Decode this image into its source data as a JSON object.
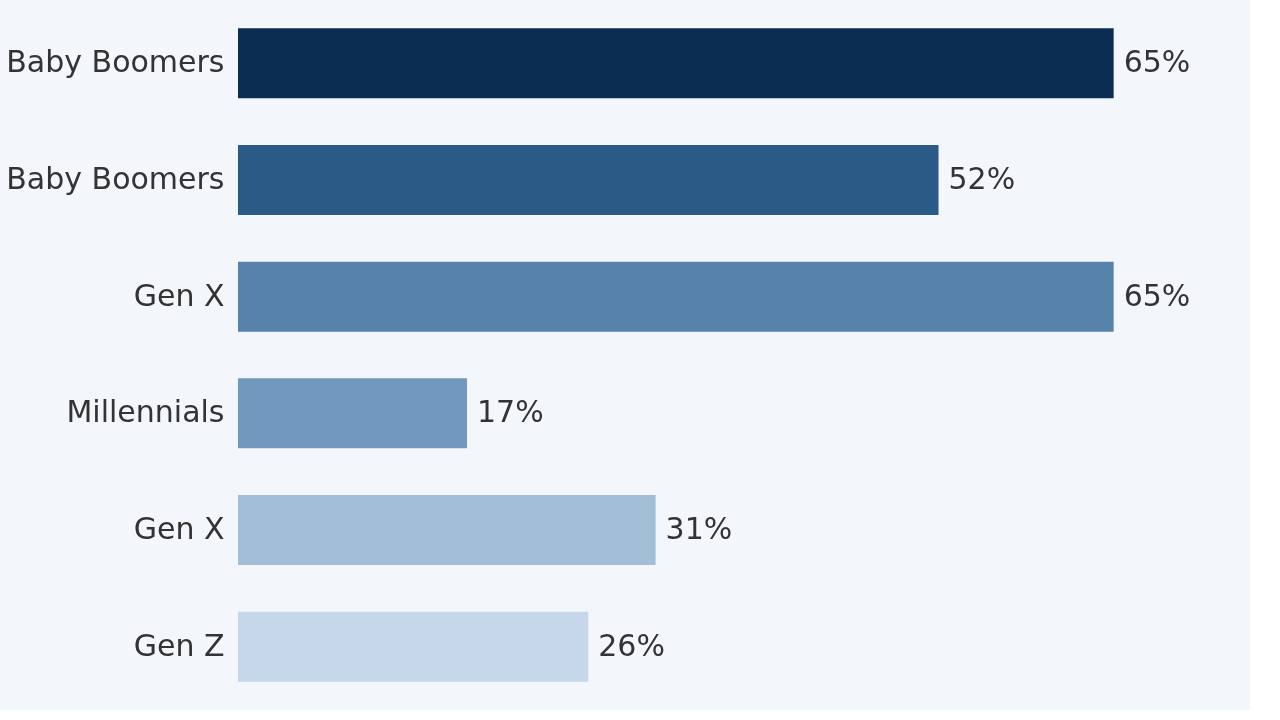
{
  "chart_data": {
    "type": "bar",
    "orientation": "horizontal",
    "categories": [
      "Baby Boomers",
      "Baby Boomers",
      "Gen X",
      "Millennials",
      "Gen X",
      "Gen Z"
    ],
    "values": [
      65,
      52,
      65,
      17,
      31,
      26
    ],
    "value_labels": [
      "65%",
      "52%",
      "65%",
      "17%",
      "31%",
      "26%"
    ],
    "colors": [
      "#0b2d52",
      "#2a5b86",
      "#5783ab",
      "#7199bf",
      "#a3bfd8",
      "#c5d7e8"
    ],
    "grid": false
  }
}
